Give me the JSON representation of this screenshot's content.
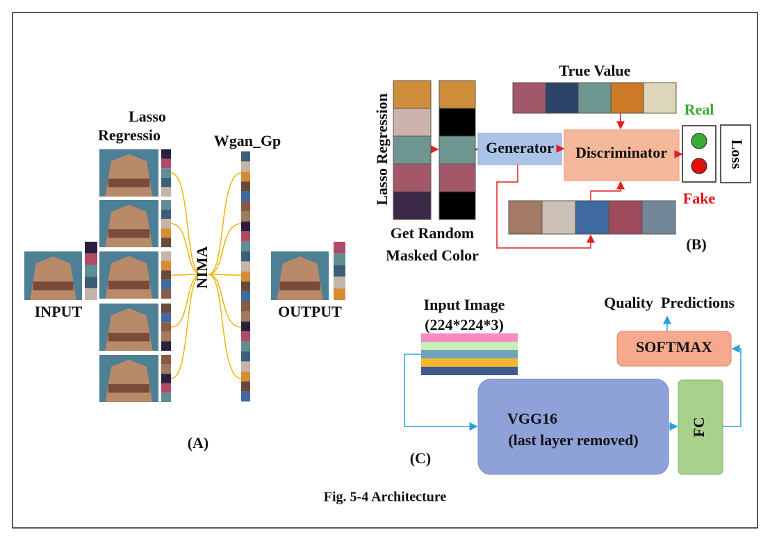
{
  "panel_a": {
    "lasso_lines": [
      "Lasso",
      "Regressio"
    ],
    "wgan": "Wgan_Gp",
    "nima": "NIMA",
    "input": "INPUT",
    "output": "OUTPUT",
    "label": "(A)"
  },
  "panel_b": {
    "true_value": "True Value",
    "real": "Real",
    "fake": "Fake",
    "loss": "Loss",
    "lasso": "Lasso Regression",
    "generator": "Generator",
    "discriminator": "Discriminator",
    "random_lines": [
      "Get Random",
      "Masked Color"
    ],
    "label": "(B)"
  },
  "panel_c": {
    "input_lines": [
      "Input Image",
      "(224*224*3)"
    ],
    "predictions": "Quality  Predictions",
    "softmax": "SOFTMAX",
    "vgg_lines": [
      "VGG16",
      "(last layer removed)"
    ],
    "fc": "FC",
    "label": "(C)"
  },
  "caption": "Fig. 5-4 Architecture"
}
